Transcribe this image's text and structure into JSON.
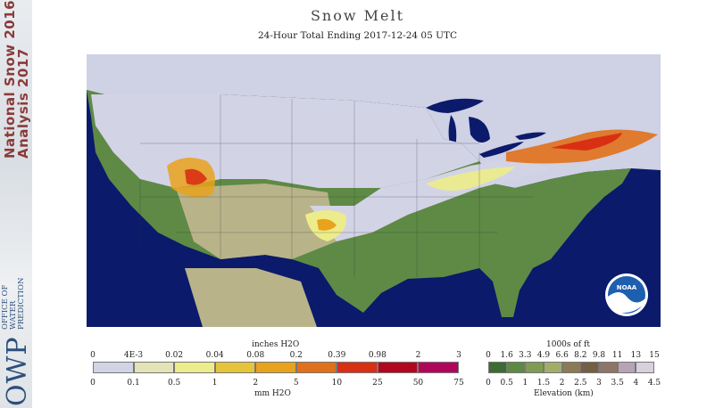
{
  "sidebar": {
    "brand_line1": "National Snow 2016-",
    "brand_line2": "Analysis 2017",
    "org_acronym": "OWP",
    "org_name_lines": [
      "OFFICE OF",
      "WATER",
      "PREDICTION"
    ]
  },
  "header": {
    "title": "Snow Melt",
    "subtitle": "24-Hour Total Ending 2017-12-24 05 UTC"
  },
  "map_logo": "NOAA",
  "legend_melt": {
    "top_unit": "inches H2O",
    "top_labels": [
      "0",
      "4E-3",
      "0.02",
      "0.04",
      "0.08",
      "0.2",
      "0.39",
      "0.98",
      "2",
      "3"
    ],
    "bottom_labels": [
      "0",
      "0.1",
      "0.5",
      "1",
      "2",
      "5",
      "10",
      "25",
      "50",
      "75"
    ],
    "bottom_unit": "mm H2O",
    "colors": [
      "#d3d3e6",
      "#e3e3b6",
      "#ecec8a",
      "#e6c43a",
      "#e8a21c",
      "#e0701a",
      "#d92f13",
      "#b3071d",
      "#b0065a"
    ]
  },
  "legend_elev": {
    "top_unit": "1000s of ft",
    "top_labels": [
      "0",
      "1.6",
      "3.3",
      "4.9",
      "6.6",
      "8.2",
      "9.8",
      "11",
      "13",
      "15"
    ],
    "bottom_labels": [
      "0",
      "0.5",
      "1",
      "1.5",
      "2",
      "2.5",
      "3",
      "3.5",
      "4",
      "4.5"
    ],
    "bottom_unit": "Elevation (km)",
    "colors": [
      "#3d6b34",
      "#5d8a40",
      "#7f9c52",
      "#a3ad6a",
      "#8c7a55",
      "#745e46",
      "#8e7568",
      "#b6a4b6",
      "#d8d0dc"
    ]
  }
}
